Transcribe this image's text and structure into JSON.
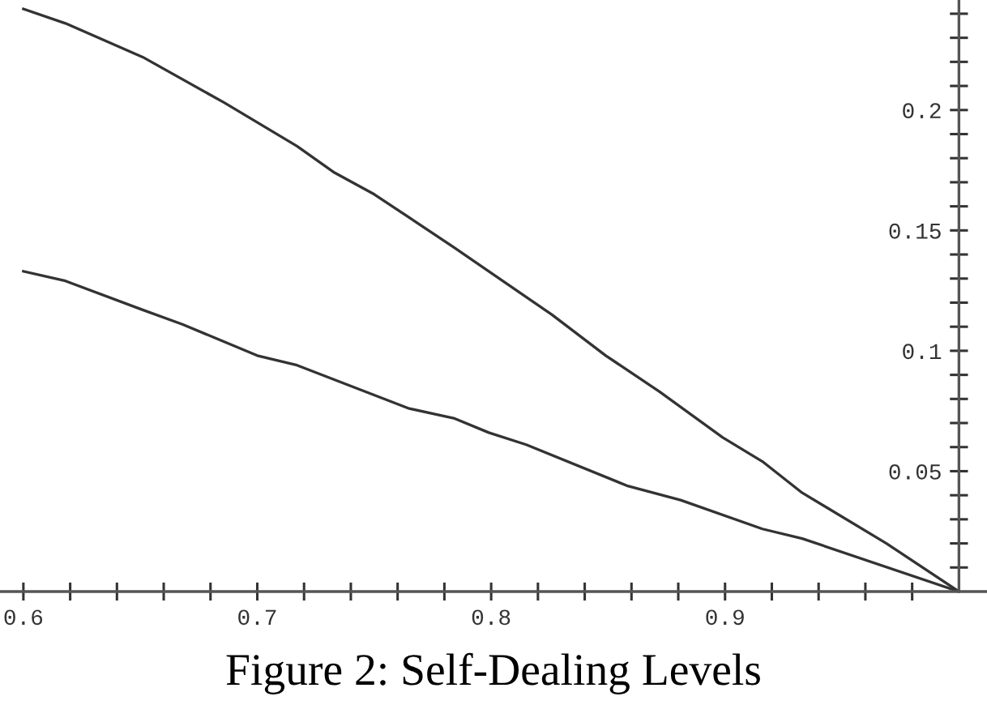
{
  "chart_data": {
    "type": "line",
    "title": "Figure 2: Self-Dealing Levels",
    "xlim": [
      0.59,
      1.012
    ],
    "ylim": [
      0,
      0.2457
    ],
    "xticks": [
      {
        "value": 0.6,
        "label": "0.6"
      },
      {
        "value": 0.62,
        "label": null
      },
      {
        "value": 0.64,
        "label": null
      },
      {
        "value": 0.66,
        "label": null
      },
      {
        "value": 0.68,
        "label": null
      },
      {
        "value": 0.7,
        "label": "0.7"
      },
      {
        "value": 0.72,
        "label": null
      },
      {
        "value": 0.74,
        "label": null
      },
      {
        "value": 0.76,
        "label": null
      },
      {
        "value": 0.78,
        "label": null
      },
      {
        "value": 0.8,
        "label": "0.8"
      },
      {
        "value": 0.82,
        "label": null
      },
      {
        "value": 0.84,
        "label": null
      },
      {
        "value": 0.86,
        "label": null
      },
      {
        "value": 0.88,
        "label": null
      },
      {
        "value": 0.9,
        "label": "0.9"
      },
      {
        "value": 0.92,
        "label": null
      },
      {
        "value": 0.94,
        "label": null
      },
      {
        "value": 0.96,
        "label": null
      },
      {
        "value": 0.98,
        "label": null
      }
    ],
    "yticks": [
      {
        "value": 0.01,
        "label": null
      },
      {
        "value": 0.02,
        "label": null
      },
      {
        "value": 0.03,
        "label": null
      },
      {
        "value": 0.04,
        "label": null
      },
      {
        "value": 0.05,
        "label": "0.05"
      },
      {
        "value": 0.06,
        "label": null
      },
      {
        "value": 0.07,
        "label": null
      },
      {
        "value": 0.08,
        "label": null
      },
      {
        "value": 0.09,
        "label": null
      },
      {
        "value": 0.1,
        "label": "0.1"
      },
      {
        "value": 0.11,
        "label": null
      },
      {
        "value": 0.12,
        "label": null
      },
      {
        "value": 0.13,
        "label": null
      },
      {
        "value": 0.14,
        "label": null
      },
      {
        "value": 0.15,
        "label": "0.15"
      },
      {
        "value": 0.16,
        "label": null
      },
      {
        "value": 0.17,
        "label": null
      },
      {
        "value": 0.18,
        "label": null
      },
      {
        "value": 0.19,
        "label": null
      },
      {
        "value": 0.2,
        "label": "0.2"
      },
      {
        "value": 0.21,
        "label": null
      },
      {
        "value": 0.22,
        "label": null
      },
      {
        "value": 0.23,
        "label": null
      },
      {
        "value": 0.24,
        "label": null
      }
    ],
    "grid": false,
    "legend": false,
    "marker": "none",
    "line_style": "solid",
    "series": [
      {
        "color": "#333333",
        "x": [
          0.6,
          0.618,
          0.651,
          0.686,
          0.717,
          0.733,
          0.75,
          0.784,
          0.799,
          0.826,
          0.849,
          0.872,
          0.899,
          0.916,
          0.933,
          0.969,
          1.0
        ],
        "values": [
          0.242,
          0.236,
          0.222,
          0.203,
          0.185,
          0.174,
          0.165,
          0.143,
          0.133,
          0.115,
          0.098,
          0.083,
          0.064,
          0.054,
          0.041,
          0.02,
          0
        ]
      },
      {
        "color": "#333333",
        "x": [
          0.6,
          0.618,
          0.651,
          0.668,
          0.7,
          0.717,
          0.765,
          0.784,
          0.799,
          0.815,
          0.858,
          0.881,
          0.916,
          0.933,
          1.0
        ],
        "values": [
          0.133,
          0.129,
          0.117,
          0.111,
          0.098,
          0.094,
          0.076,
          0.072,
          0.066,
          0.061,
          0.044,
          0.038,
          0.026,
          0.022,
          0
        ]
      }
    ]
  }
}
